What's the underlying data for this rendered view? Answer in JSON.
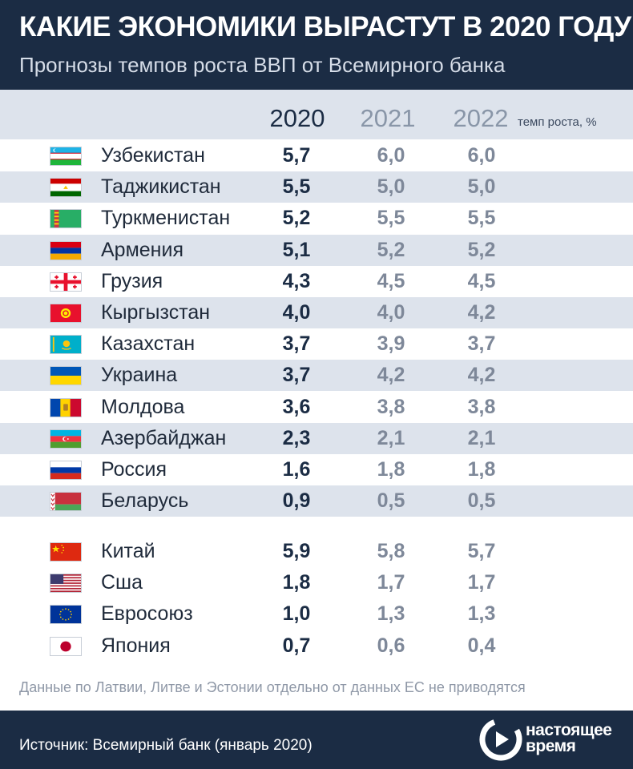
{
  "header": {
    "title": "КАКИЕ ЭКОНОМИКИ ВЫРАСТУТ В 2020 ГОДУ",
    "subtitle": "Прогнозы темпов роста ВВП от Всемирного банка"
  },
  "columns": {
    "years": [
      "2020",
      "2021",
      "2022"
    ],
    "unit": "темп роста, %"
  },
  "colors": {
    "navy": "#1b2c44",
    "stripe": "#dde3ec",
    "muted": "#7e8899"
  },
  "chart_data": {
    "type": "table",
    "title": "КАКИЕ ЭКОНОМИКИ ВЫРАСТУТ В 2020 ГОДУ",
    "subtitle": "Прогнозы темпов роста ВВП от Всемирного банка",
    "columns": [
      "2020",
      "2021",
      "2022"
    ],
    "unit": "темп роста, %",
    "groups": [
      {
        "rows": [
          {
            "country": "Узбекистан",
            "flag": "uzbekistan-flag-icon",
            "values": [
              "5,7",
              "6,0",
              "6,0"
            ]
          },
          {
            "country": "Таджикистан",
            "flag": "tajikistan-flag-icon",
            "values": [
              "5,5",
              "5,0",
              "5,0"
            ]
          },
          {
            "country": "Туркменистан",
            "flag": "turkmenistan-flag-icon",
            "values": [
              "5,2",
              "5,5",
              "5,5"
            ]
          },
          {
            "country": "Армения",
            "flag": "armenia-flag-icon",
            "values": [
              "5,1",
              "5,2",
              "5,2"
            ]
          },
          {
            "country": "Грузия",
            "flag": "georgia-flag-icon",
            "values": [
              "4,3",
              "4,5",
              "4,5"
            ]
          },
          {
            "country": "Кыргызстан",
            "flag": "kyrgyzstan-flag-icon",
            "values": [
              "4,0",
              "4,0",
              "4,2"
            ]
          },
          {
            "country": "Казахстан",
            "flag": "kazakhstan-flag-icon",
            "values": [
              "3,7",
              "3,9",
              "3,7"
            ]
          },
          {
            "country": "Украина",
            "flag": "ukraine-flag-icon",
            "values": [
              "3,7",
              "4,2",
              "4,2"
            ]
          },
          {
            "country": "Молдова",
            "flag": "moldova-flag-icon",
            "values": [
              "3,6",
              "3,8",
              "3,8"
            ]
          },
          {
            "country": "Азербайджан",
            "flag": "azerbaijan-flag-icon",
            "values": [
              "2,3",
              "2,1",
              "2,1"
            ]
          },
          {
            "country": "Россия",
            "flag": "russia-flag-icon",
            "values": [
              "1,6",
              "1,8",
              "1,8"
            ]
          },
          {
            "country": "Беларусь",
            "flag": "belarus-flag-icon",
            "values": [
              "0,9",
              "0,5",
              "0,5"
            ]
          }
        ]
      },
      {
        "rows": [
          {
            "country": "Китай",
            "flag": "china-flag-icon",
            "values": [
              "5,9",
              "5,8",
              "5,7"
            ]
          },
          {
            "country": "Сша",
            "flag": "usa-flag-icon",
            "values": [
              "1,8",
              "1,7",
              "1,7"
            ]
          },
          {
            "country": "Евросоюз",
            "flag": "eu-flag-icon",
            "values": [
              "1,0",
              "1,3",
              "1,3"
            ]
          },
          {
            "country": "Япония",
            "flag": "japan-flag-icon",
            "values": [
              "0,7",
              "0,6",
              "0,4"
            ]
          }
        ]
      }
    ]
  },
  "footer": {
    "note": "Данные по Латвии, Литве и Эстонии отдельно от данных ЕС не приводятся",
    "source": "Источник: Всемирный банк (январь 2020)",
    "logo_line1": "настоящее",
    "logo_line2": "время"
  }
}
